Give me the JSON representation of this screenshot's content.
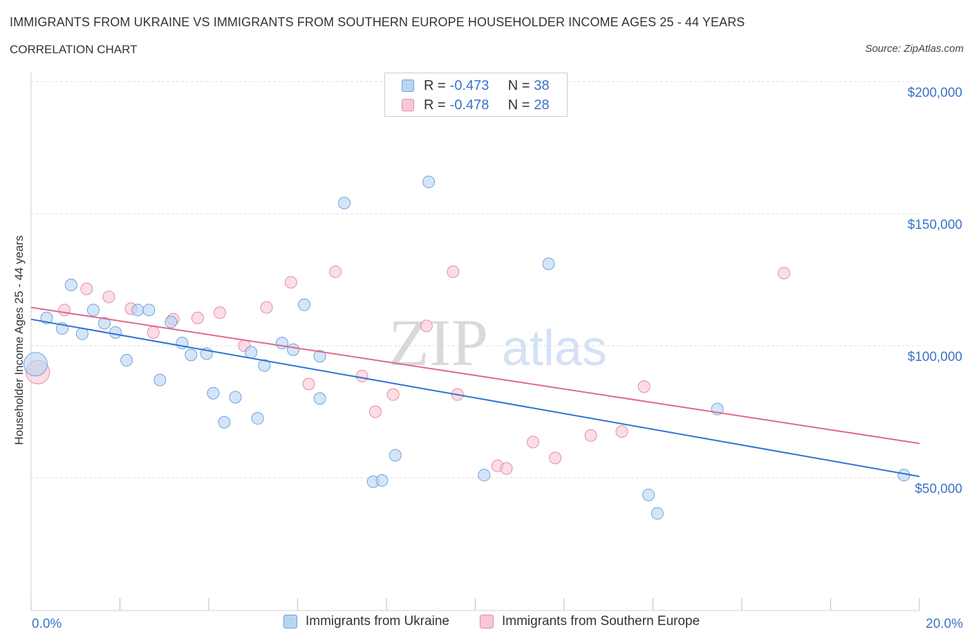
{
  "header": {
    "title": "IMMIGRANTS FROM UKRAINE VS IMMIGRANTS FROM SOUTHERN EUROPE HOUSEHOLDER INCOME AGES 25 - 44 YEARS",
    "subtitle": "CORRELATION CHART",
    "source": "Source: ZipAtlas.com"
  },
  "legend_top": {
    "rows": [
      {
        "r_label": "R =",
        "r_value": "-0.473",
        "n_label": "N =",
        "n_value": "38"
      },
      {
        "r_label": "R =",
        "r_value": "-0.478",
        "n_label": "N =",
        "n_value": "28"
      }
    ]
  },
  "legend_bottom": {
    "ukraine": "Immigrants from Ukraine",
    "southern_europe": "Immigrants from Southern Europe"
  },
  "watermark": {
    "zip": "ZIP",
    "atlas": "atlas"
  },
  "colors": {
    "ukraine_fill": "#b9d4f3",
    "ukraine_stroke": "#6f9fdc",
    "ukraine_line": "#2f72d3",
    "southern_fill": "#f8c7d5",
    "southern_stroke": "#e58aa6",
    "southern_line": "#e0688f",
    "axis_text": "#3a72c9",
    "grid": "#dcdcdc"
  },
  "chart_data": {
    "type": "scatter",
    "title": "IMMIGRANTS FROM UKRAINE VS IMMIGRANTS FROM SOUTHERN EUROPE HOUSEHOLDER INCOME AGES 25 - 44 YEARS",
    "xlabel": "",
    "ylabel": "Householder Income Ages 25 - 44 years",
    "xlim": [
      0,
      20
    ],
    "ylim": [
      0,
      200000
    ],
    "x_tick_labels": [
      "0.0%",
      "20.0%"
    ],
    "y_ticks": [
      50000,
      100000,
      150000,
      200000
    ],
    "y_tick_labels": [
      "$50,000",
      "$100,000",
      "$150,000",
      "$200,000"
    ],
    "grid": true,
    "legend_position": "bottom",
    "series": [
      {
        "name": "Immigrants from Ukraine",
        "r": -0.473,
        "n": 38,
        "trend": {
          "x": [
            0,
            20
          ],
          "y": [
            110000,
            50500
          ]
        },
        "points": [
          {
            "x": 0.1,
            "y": 93000,
            "big": true
          },
          {
            "x": 0.35,
            "y": 110500
          },
          {
            "x": 0.7,
            "y": 106500
          },
          {
            "x": 0.9,
            "y": 123000
          },
          {
            "x": 1.15,
            "y": 104500
          },
          {
            "x": 1.4,
            "y": 113500
          },
          {
            "x": 1.65,
            "y": 108500
          },
          {
            "x": 1.9,
            "y": 105000
          },
          {
            "x": 2.15,
            "y": 94500
          },
          {
            "x": 2.4,
            "y": 113500
          },
          {
            "x": 2.65,
            "y": 113500
          },
          {
            "x": 2.9,
            "y": 87000
          },
          {
            "x": 3.15,
            "y": 109000
          },
          {
            "x": 3.4,
            "y": 101000
          },
          {
            "x": 3.6,
            "y": 96500
          },
          {
            "x": 3.95,
            "y": 97000
          },
          {
            "x": 4.1,
            "y": 82000
          },
          {
            "x": 4.35,
            "y": 71000
          },
          {
            "x": 4.6,
            "y": 80500
          },
          {
            "x": 4.95,
            "y": 97500
          },
          {
            "x": 5.1,
            "y": 72500
          },
          {
            "x": 5.25,
            "y": 92500
          },
          {
            "x": 5.65,
            "y": 101000
          },
          {
            "x": 5.9,
            "y": 98500
          },
          {
            "x": 6.15,
            "y": 115500
          },
          {
            "x": 6.5,
            "y": 80000
          },
          {
            "x": 6.5,
            "y": 96000
          },
          {
            "x": 7.05,
            "y": 154000
          },
          {
            "x": 7.7,
            "y": 48500
          },
          {
            "x": 7.9,
            "y": 49000
          },
          {
            "x": 8.2,
            "y": 58500
          },
          {
            "x": 8.95,
            "y": 162000
          },
          {
            "x": 10.2,
            "y": 51000
          },
          {
            "x": 11.65,
            "y": 131000
          },
          {
            "x": 13.9,
            "y": 43500
          },
          {
            "x": 14.1,
            "y": 36500
          },
          {
            "x": 15.45,
            "y": 76000
          },
          {
            "x": 19.65,
            "y": 51000
          }
        ]
      },
      {
        "name": "Immigrants from Southern Europe",
        "r": -0.478,
        "n": 28,
        "trend": {
          "x": [
            0,
            20
          ],
          "y": [
            114500,
            63000
          ]
        },
        "points": [
          {
            "x": 0.15,
            "y": 90000,
            "big": true
          },
          {
            "x": 0.75,
            "y": 113500
          },
          {
            "x": 1.25,
            "y": 121500
          },
          {
            "x": 1.75,
            "y": 118500
          },
          {
            "x": 2.25,
            "y": 114000
          },
          {
            "x": 2.75,
            "y": 105000
          },
          {
            "x": 3.2,
            "y": 110000
          },
          {
            "x": 3.75,
            "y": 110500
          },
          {
            "x": 4.25,
            "y": 112500
          },
          {
            "x": 4.8,
            "y": 100000
          },
          {
            "x": 5.3,
            "y": 114500
          },
          {
            "x": 5.85,
            "y": 124000
          },
          {
            "x": 6.25,
            "y": 85500
          },
          {
            "x": 6.85,
            "y": 128000
          },
          {
            "x": 7.45,
            "y": 88500
          },
          {
            "x": 7.75,
            "y": 75000
          },
          {
            "x": 8.15,
            "y": 81500
          },
          {
            "x": 8.9,
            "y": 107500
          },
          {
            "x": 9.5,
            "y": 128000
          },
          {
            "x": 9.6,
            "y": 81500
          },
          {
            "x": 10.5,
            "y": 54500
          },
          {
            "x": 10.7,
            "y": 53500
          },
          {
            "x": 11.3,
            "y": 63500
          },
          {
            "x": 11.8,
            "y": 57500
          },
          {
            "x": 12.6,
            "y": 66000
          },
          {
            "x": 13.3,
            "y": 67500
          },
          {
            "x": 13.8,
            "y": 84500
          },
          {
            "x": 16.95,
            "y": 127500
          }
        ]
      }
    ]
  }
}
